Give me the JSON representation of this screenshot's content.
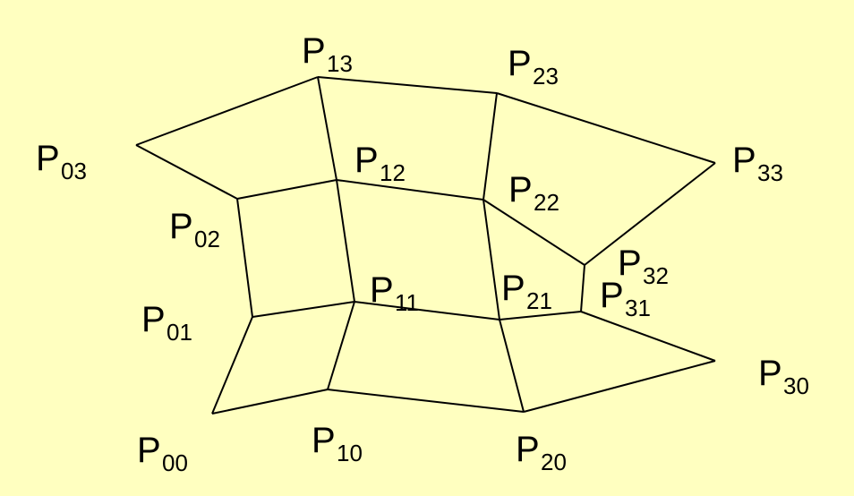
{
  "background": "#ffffc0",
  "stroke_color": "#000000",
  "points": {
    "P00": {
      "letter": "P",
      "sub": "00"
    },
    "P01": {
      "letter": "P",
      "sub": "01"
    },
    "P02": {
      "letter": "P",
      "sub": "02"
    },
    "P03": {
      "letter": "P",
      "sub": "03"
    },
    "P10": {
      "letter": "P",
      "sub": "10"
    },
    "P11": {
      "letter": "P",
      "sub": "11"
    },
    "P12": {
      "letter": "P",
      "sub": "12"
    },
    "P13": {
      "letter": "P",
      "sub": "13"
    },
    "P20": {
      "letter": "P",
      "sub": "20"
    },
    "P21": {
      "letter": "P",
      "sub": "21"
    },
    "P22": {
      "letter": "P",
      "sub": "22"
    },
    "P23": {
      "letter": "P",
      "sub": "23"
    },
    "P30": {
      "letter": "P",
      "sub": "30"
    },
    "P31": {
      "letter": "P",
      "sub": "31"
    },
    "P32": {
      "letter": "P",
      "sub": "32"
    },
    "P33": {
      "letter": "P",
      "sub": "33"
    }
  }
}
